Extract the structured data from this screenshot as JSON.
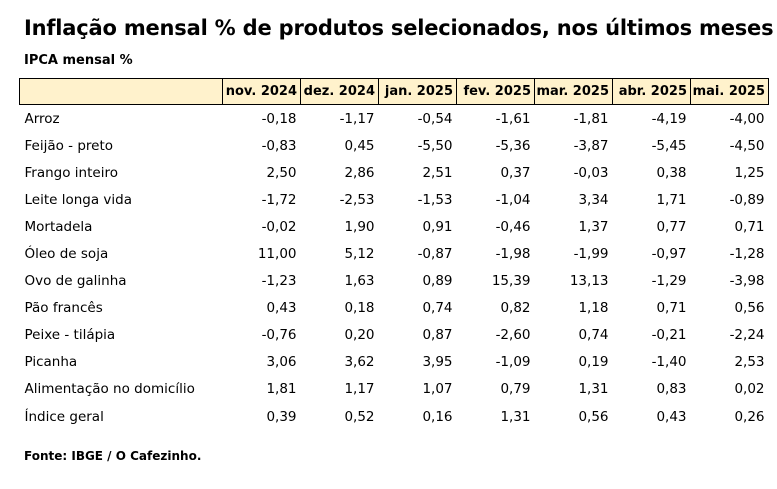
{
  "title": "Inflação mensal % de produtos selecionados, nos últimos meses",
  "subtitle": "IPCA mensal %",
  "source": "Fonte: IBGE / O Cafezinho.",
  "colors": {
    "header_fill": "#fff2cc",
    "border": "#000000"
  },
  "chart_data": {
    "type": "table",
    "columns": [
      "nov. 2024",
      "dez. 2024",
      "jan. 2025",
      "fev. 2025",
      "mar. 2025",
      "abr. 2025",
      "mai. 2025"
    ],
    "rows": [
      {
        "label": "Arroz",
        "values": [
          "-0,18",
          "-1,17",
          "-0,54",
          "-1,61",
          "-1,81",
          "-4,19",
          "-4,00"
        ]
      },
      {
        "label": "Feijão - preto",
        "values": [
          "-0,83",
          "0,45",
          "-5,50",
          "-5,36",
          "-3,87",
          "-5,45",
          "-4,50"
        ]
      },
      {
        "label": "Frango inteiro",
        "values": [
          "2,50",
          "2,86",
          "2,51",
          "0,37",
          "-0,03",
          "0,38",
          "1,25"
        ]
      },
      {
        "label": "Leite longa vida",
        "values": [
          "-1,72",
          "-2,53",
          "-1,53",
          "-1,04",
          "3,34",
          "1,71",
          "-0,89"
        ]
      },
      {
        "label": "Mortadela",
        "values": [
          "-0,02",
          "1,90",
          "0,91",
          "-0,46",
          "1,37",
          "0,77",
          "0,71"
        ]
      },
      {
        "label": "Óleo de soja",
        "values": [
          "11,00",
          "5,12",
          "-0,87",
          "-1,98",
          "-1,99",
          "-0,97",
          "-1,28"
        ]
      },
      {
        "label": "Ovo de galinha",
        "values": [
          "-1,23",
          "1,63",
          "0,89",
          "15,39",
          "13,13",
          "-1,29",
          "-3,98"
        ]
      },
      {
        "label": "Pão francês",
        "values": [
          "0,43",
          "0,18",
          "0,74",
          "0,82",
          "1,18",
          "0,71",
          "0,56"
        ]
      },
      {
        "label": "Peixe - tilápia",
        "values": [
          "-0,76",
          "0,20",
          "0,87",
          "-2,60",
          "0,74",
          "-0,21",
          "-2,24"
        ]
      },
      {
        "label": "Picanha",
        "values": [
          "3,06",
          "3,62",
          "3,95",
          "-1,09",
          "0,19",
          "-1,40",
          "2,53"
        ]
      },
      {
        "label": "Alimentação no domicílio",
        "values": [
          "1,81",
          "1,17",
          "1,07",
          "0,79",
          "1,31",
          "0,83",
          "0,02"
        ]
      },
      {
        "label": "Índice geral",
        "values": [
          "0,39",
          "0,52",
          "0,16",
          "1,31",
          "0,56",
          "0,43",
          "0,26"
        ]
      }
    ]
  }
}
